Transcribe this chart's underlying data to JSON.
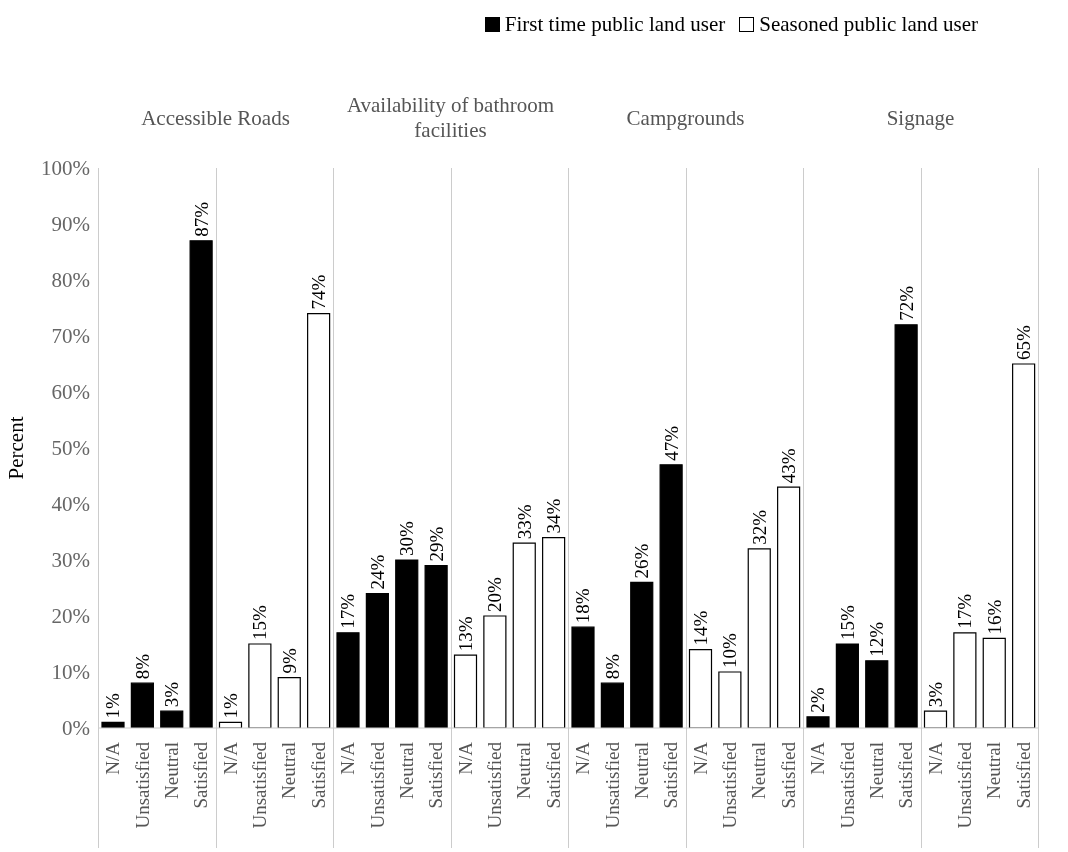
{
  "chart_data": {
    "type": "bar",
    "ylabel": "Percent",
    "legend": "top right",
    "annotations": [
      "Accessible Roads",
      "Availability of bathroom facilities",
      "Campgrounds",
      "Signage"
    ],
    "categories": [
      "N/A",
      "Unsatisfied",
      "Neutral",
      "Satisfied",
      "N/A",
      "Unsatisfied",
      "Neutral",
      "Satisfied",
      "N/A",
      "Unsatisfied",
      "Neutral",
      "Satisfied",
      "N/A",
      "Unsatisfied",
      "Neutral",
      "Satisfied",
      "N/A",
      "Unsatisfied",
      "Neutral",
      "Satisfied",
      "N/A",
      "Unsatisfied",
      "Neutral",
      "Satisfied",
      "N/A",
      "Unsatisfied",
      "Neutral",
      "Satisfied",
      "N/A",
      "Unsatisfied",
      "Neutral",
      "Satisfied"
    ],
    "ylim": [
      0,
      100
    ],
    "grid": "x",
    "yticks": [
      {
        "value": 0,
        "label": "0%"
      },
      {
        "value": 10,
        "label": "10%"
      },
      {
        "value": 20,
        "label": "20%"
      },
      {
        "value": 30,
        "label": "30%"
      },
      {
        "value": 40,
        "label": "40%"
      },
      {
        "value": 50,
        "label": "50%"
      },
      {
        "value": 60,
        "label": "60%"
      },
      {
        "value": 70,
        "label": "70%"
      },
      {
        "value": 80,
        "label": "80%"
      },
      {
        "value": 90,
        "label": "90%"
      },
      {
        "value": 100,
        "label": "100%"
      }
    ],
    "series": [
      {
        "name": "First time public land user",
        "color": "#000000",
        "values": [
          1,
          8,
          3,
          87,
          null,
          null,
          null,
          null,
          17,
          24,
          30,
          29,
          null,
          null,
          null,
          null,
          18,
          8,
          26,
          47,
          null,
          null,
          null,
          null,
          2,
          15,
          12,
          72,
          null,
          null,
          null,
          null
        ],
        "value_labels": [
          "1%",
          "8%",
          "3%",
          "87%",
          null,
          null,
          null,
          null,
          "17%",
          "24%",
          "30%",
          "29%",
          null,
          null,
          null,
          null,
          "18%",
          "8%",
          "26%",
          "47%",
          null,
          null,
          null,
          null,
          "2%",
          "15%",
          "12%",
          "72%",
          null,
          null,
          null,
          null
        ]
      },
      {
        "name": "Seasoned public land user",
        "color": "#ffffff",
        "values": [
          null,
          null,
          null,
          null,
          1,
          15,
          9,
          74,
          null,
          null,
          null,
          null,
          13,
          20,
          33,
          34,
          null,
          null,
          null,
          null,
          14,
          10,
          32,
          43,
          null,
          null,
          null,
          null,
          3,
          17,
          16,
          65
        ],
        "value_labels": [
          null,
          null,
          null,
          null,
          "1%",
          "15%",
          "9%",
          "74%",
          null,
          null,
          null,
          null,
          "13%",
          "20%",
          "33%",
          "34%",
          null,
          null,
          null,
          null,
          "14%",
          "10%",
          "32%",
          "43%",
          null,
          null,
          null,
          null,
          "3%",
          "17%",
          "16%",
          "65%"
        ]
      }
    ]
  }
}
